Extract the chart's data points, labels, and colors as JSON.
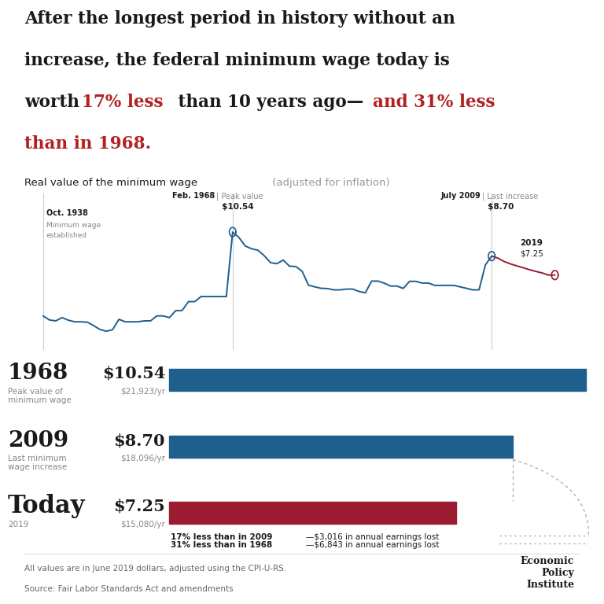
{
  "bg_color": "#ffffff",
  "line_color_blue": "#1e5f8e",
  "line_color_red": "#9b1b30",
  "bar_color_blue": "#1e5f8e",
  "bar_color_red": "#9b1b30",
  "chart_years": [
    1938,
    1939,
    1940,
    1941,
    1942,
    1943,
    1944,
    1945,
    1946,
    1947,
    1948,
    1949,
    1950,
    1951,
    1952,
    1953,
    1954,
    1955,
    1956,
    1957,
    1958,
    1959,
    1960,
    1961,
    1962,
    1963,
    1964,
    1965,
    1966,
    1967,
    1968,
    1969,
    1970,
    1971,
    1972,
    1973,
    1974,
    1975,
    1976,
    1977,
    1978,
    1979,
    1980,
    1981,
    1982,
    1983,
    1984,
    1985,
    1986,
    1987,
    1988,
    1989,
    1990,
    1991,
    1992,
    1993,
    1994,
    1995,
    1996,
    1997,
    1998,
    1999,
    2000,
    2001,
    2002,
    2003,
    2004,
    2005,
    2006,
    2007,
    2008,
    2009,
    2010,
    2011,
    2012,
    2013,
    2014,
    2015,
    2016,
    2017,
    2018,
    2019
  ],
  "chart_values": [
    4.13,
    3.82,
    3.75,
    4.0,
    3.8,
    3.68,
    3.68,
    3.65,
    3.39,
    3.09,
    2.96,
    3.08,
    3.87,
    3.68,
    3.68,
    3.68,
    3.75,
    3.75,
    4.13,
    4.13,
    4.0,
    4.54,
    4.54,
    5.22,
    5.22,
    5.61,
    5.61,
    5.61,
    5.61,
    5.61,
    10.54,
    10.12,
    9.47,
    9.26,
    9.15,
    8.73,
    8.2,
    8.12,
    8.4,
    7.93,
    7.9,
    7.54,
    6.48,
    6.35,
    6.24,
    6.22,
    6.12,
    6.12,
    6.18,
    6.18,
    6.0,
    5.89,
    6.79,
    6.79,
    6.63,
    6.41,
    6.41,
    6.23,
    6.77,
    6.77,
    6.64,
    6.64,
    6.46,
    6.46,
    6.46,
    6.46,
    6.35,
    6.24,
    6.12,
    6.12,
    8.02,
    8.7,
    8.54,
    8.28,
    8.1,
    7.95,
    7.81,
    7.66,
    7.53,
    7.41,
    7.25,
    7.25
  ],
  "note_text1": "All values are in June 2019 dollars, adjusted using the CPI-U-RS.",
  "note_text2": "Source: Fair Labor Standards Act and amendments"
}
